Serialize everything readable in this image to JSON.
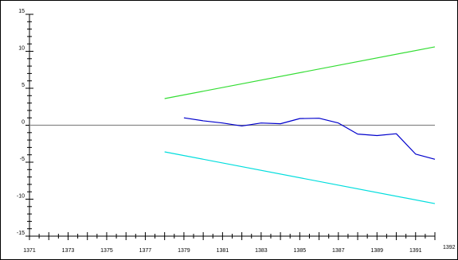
{
  "chart_data": {
    "type": "line",
    "title": "",
    "xlabel": "",
    "ylabel": "",
    "xlim": [
      1371,
      1392
    ],
    "ylim": [
      -15,
      15
    ],
    "grid": false,
    "legend": "none",
    "x_tick_labels": [
      "1371",
      "1373",
      "1375",
      "1377",
      "1379",
      "1381",
      "1383",
      "1385",
      "1387",
      "1389",
      "1391",
      "1392"
    ],
    "y_tick_labels": [
      "15",
      "10",
      "5",
      "0",
      "-5",
      "-10",
      "-15"
    ],
    "series": [
      {
        "color": "#0000cc",
        "x": [
          1379,
          1380,
          1381,
          1382,
          1383,
          1384,
          1385,
          1386,
          1387,
          1388,
          1389,
          1390,
          1391,
          1392
        ],
        "y": [
          1.0,
          0.6,
          0.3,
          -0.1,
          0.3,
          0.2,
          0.9,
          0.95,
          0.3,
          -1.2,
          -1.4,
          -1.15,
          -3.9,
          -4.6
        ]
      },
      {
        "color": "#33dd33",
        "x": [
          1378,
          1392
        ],
        "y": [
          3.6,
          10.6
        ]
      },
      {
        "color": "#00dddd",
        "x": [
          1378,
          1392
        ],
        "y": [
          -3.6,
          -10.6
        ]
      },
      {
        "color": "#888888",
        "x": [
          1371,
          1392
        ],
        "y": [
          0,
          0
        ]
      }
    ]
  }
}
